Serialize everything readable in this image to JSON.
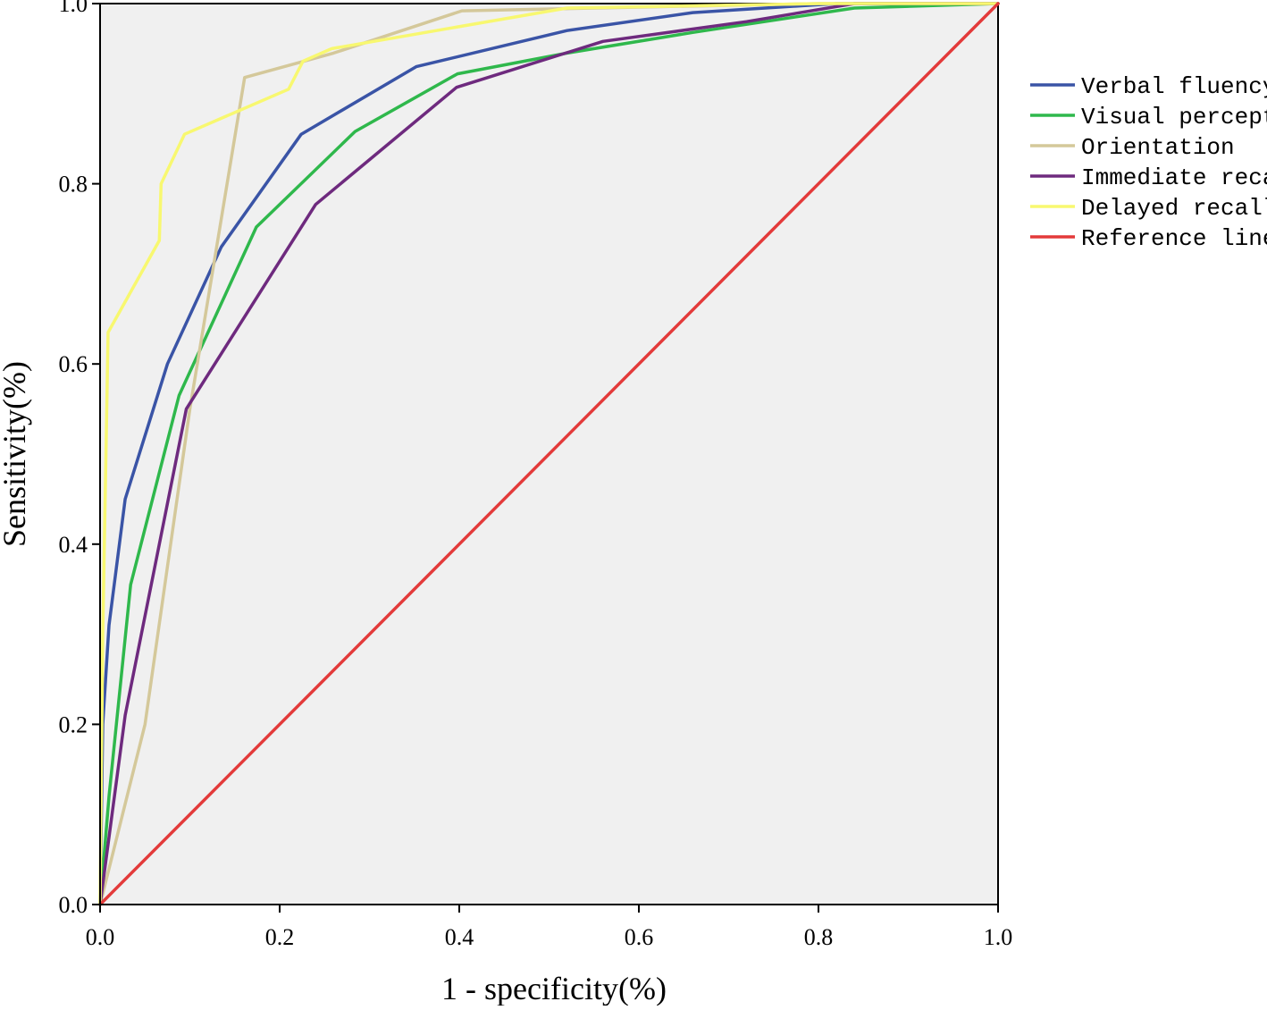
{
  "chart_data": {
    "type": "line",
    "title": "",
    "xlabel": "1 - specificity(%)",
    "ylabel": "Sensitivity(%)",
    "xlim": [
      0,
      1
    ],
    "ylim": [
      0,
      1
    ],
    "x_ticks": [
      "0.0",
      "0.2",
      "0.4",
      "0.6",
      "0.8",
      "1.0"
    ],
    "y_ticks": [
      "0.0",
      "0.2",
      "0.4",
      "0.6",
      "0.8",
      "1.0"
    ],
    "grid": false,
    "plot_background": "#f0f0f0",
    "legend_position": "right",
    "series": [
      {
        "name": "Verbal fluency",
        "color": "#3a54a6",
        "points": [
          [
            0,
            0
          ],
          [
            0.003,
            0.2
          ],
          [
            0.01,
            0.31
          ],
          [
            0.028,
            0.45
          ],
          [
            0.075,
            0.6
          ],
          [
            0.135,
            0.73
          ],
          [
            0.224,
            0.855
          ],
          [
            0.352,
            0.93
          ],
          [
            0.52,
            0.97
          ],
          [
            0.66,
            0.99
          ],
          [
            0.82,
            1.0
          ],
          [
            1.0,
            1.0
          ]
        ]
      },
      {
        "name": "Visual perceptipn",
        "color": "#2fb84c",
        "points": [
          [
            0,
            0
          ],
          [
            0.01,
            0.12
          ],
          [
            0.034,
            0.355
          ],
          [
            0.088,
            0.565
          ],
          [
            0.174,
            0.752
          ],
          [
            0.284,
            0.858
          ],
          [
            0.398,
            0.922
          ],
          [
            0.52,
            0.945
          ],
          [
            0.66,
            0.968
          ],
          [
            0.84,
            0.995
          ],
          [
            1.0,
            1.0
          ]
        ]
      },
      {
        "name": "Orientation",
        "color": "#d4c89a",
        "points": [
          [
            0,
            0
          ],
          [
            0.05,
            0.2
          ],
          [
            0.1,
            0.55
          ],
          [
            0.161,
            0.918
          ],
          [
            0.26,
            0.945
          ],
          [
            0.403,
            0.992
          ],
          [
            0.6,
            0.996
          ],
          [
            0.8,
            1.0
          ],
          [
            1.0,
            1.0
          ]
        ]
      },
      {
        "name": "Immediate recall",
        "color": "#6e2a7e",
        "points": [
          [
            0,
            0
          ],
          [
            0.028,
            0.21
          ],
          [
            0.096,
            0.55
          ],
          [
            0.24,
            0.777
          ],
          [
            0.397,
            0.907
          ],
          [
            0.56,
            0.958
          ],
          [
            0.72,
            0.98
          ],
          [
            0.84,
            1.0
          ],
          [
            1.0,
            1.0
          ]
        ]
      },
      {
        "name": "Delayed recall",
        "color": "#f8f870",
        "points": [
          [
            0,
            0
          ],
          [
            0.003,
            0.3
          ],
          [
            0.009,
            0.635
          ],
          [
            0.066,
            0.737
          ],
          [
            0.068,
            0.8
          ],
          [
            0.094,
            0.855
          ],
          [
            0.21,
            0.905
          ],
          [
            0.226,
            0.936
          ],
          [
            0.258,
            0.95
          ],
          [
            0.52,
            0.995
          ],
          [
            0.8,
            1.0
          ],
          [
            1.0,
            1.0
          ]
        ]
      },
      {
        "name": "Reference line",
        "color": "#e33a3a",
        "points": [
          [
            0,
            0
          ],
          [
            1,
            1
          ]
        ]
      }
    ]
  }
}
